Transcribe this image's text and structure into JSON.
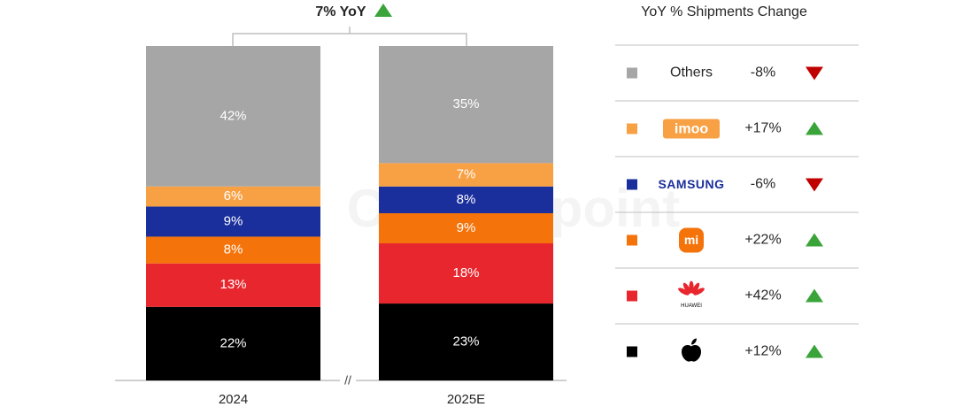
{
  "chart_data": {
    "type": "bar",
    "stacked": true,
    "categories": [
      "2024",
      "2025E"
    ],
    "ylim": [
      0,
      100
    ],
    "series": [
      {
        "color": "#000000",
        "values": [
          22,
          23
        ],
        "value_labels": [
          "22%",
          "23%"
        ]
      },
      {
        "name": "HUAWEI",
        "color": "#e8262d",
        "values": [
          13,
          18
        ],
        "value_labels": [
          "13%",
          "18%"
        ]
      },
      {
        "name": "mi",
        "color": "#f5730b",
        "values": [
          8,
          9
        ],
        "value_labels": [
          "8%",
          "9%"
        ]
      },
      {
        "name": "SAMSUNG",
        "color": "#1b2f9c",
        "values": [
          9,
          8
        ],
        "value_labels": [
          "9%",
          "8%"
        ]
      },
      {
        "name": "imoo",
        "color": "#f8a044",
        "values": [
          6,
          7
        ],
        "value_labels": [
          "6%",
          "7%"
        ]
      },
      {
        "name": "Others",
        "color": "#a6a6a6",
        "values": [
          42,
          35
        ],
        "value_labels": [
          "42%",
          "35%"
        ]
      }
    ],
    "total_change": {
      "value": 7,
      "label": "7% YoY"
    },
    "yoy_change": {
      "title": "YoY % Shipments Change",
      "values": [
        12,
        42,
        22,
        -6,
        17,
        -8
      ],
      "value_labels": [
        "+12%",
        "+42%",
        "+22%",
        "-6%",
        "+17%",
        "-8%"
      ],
      "up_color": "#3aa43a",
      "down_color": "#c00000"
    },
    "axis_break": "//",
    "watermark": "Counterpoint"
  }
}
